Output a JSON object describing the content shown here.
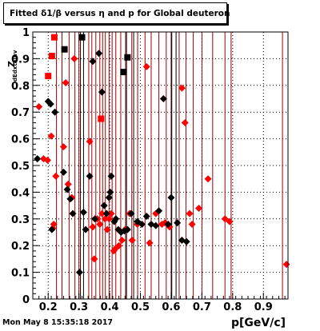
{
  "footer": {
    "timestamp": "Mon May  8 15:35:18 2017"
  },
  "chart_data": {
    "type": "scatter",
    "title": "Fitted δ1/β versus η and p for Global deuteron",
    "xlabel": "p[GeV/c]",
    "ylabel": "Z",
    "ylabel_subscript": "dEdxtainv",
    "xlim": [
      0.15,
      0.98
    ],
    "ylim": [
      0,
      1.0
    ],
    "x_ticks": [
      0.2,
      0.3,
      0.4,
      0.5,
      0.6,
      0.7,
      0.8,
      0.9
    ],
    "x_tick_labels": [
      "0.2",
      "0.3",
      "0.4",
      "0.5",
      "0.6",
      "0.7",
      "0.8",
      "0.9"
    ],
    "y_ticks": [
      0,
      0.1,
      0.2,
      0.3,
      0.4,
      0.5,
      0.6,
      0.7,
      0.8,
      0.9,
      1.0
    ],
    "y_tick_labels": [
      "0",
      "0.1",
      "0.2",
      "0.3",
      "0.4",
      "0.5",
      "0.6",
      "0.7",
      "0.8",
      "0.9",
      "1"
    ],
    "grid": true,
    "colors": {
      "red": "#ff0000",
      "dark_red": "#a00000",
      "black": "#000000"
    },
    "red_vertical_lines_x": [
      0.227,
      0.245,
      0.268,
      0.287,
      0.3,
      0.332,
      0.342,
      0.355,
      0.368,
      0.377,
      0.386,
      0.398,
      0.408,
      0.42,
      0.436,
      0.455,
      0.472,
      0.491,
      0.515,
      0.535,
      0.56,
      0.584,
      0.6,
      0.626,
      0.648,
      0.672,
      0.7,
      0.735,
      0.775,
      0.795,
      0.962
    ],
    "black_vertical_lines_x": [
      0.305,
      0.315,
      0.452,
      0.478,
      0.602,
      0.616
    ],
    "series": [
      {
        "marker": "diamond",
        "color": "red",
        "x": [
          0.17,
          0.185,
          0.198,
          0.21,
          0.215,
          0.218,
          0.225,
          0.25,
          0.257,
          0.265,
          0.277,
          0.285,
          0.335,
          0.345,
          0.35,
          0.36,
          0.368,
          0.375,
          0.385,
          0.392,
          0.398,
          0.405,
          0.413,
          0.42,
          0.43,
          0.44,
          0.45,
          0.465,
          0.473,
          0.49,
          0.52,
          0.53,
          0.55,
          0.57,
          0.58,
          0.595,
          0.635,
          0.645,
          0.66,
          0.668,
          0.69,
          0.72,
          0.775,
          0.79,
          0.975
        ],
        "y": [
          0.72,
          0.525,
          0.52,
          0.61,
          0.265,
          0.28,
          0.46,
          0.57,
          0.81,
          0.43,
          0.38,
          0.9,
          0.59,
          0.27,
          0.15,
          0.3,
          0.28,
          0.32,
          0.3,
          0.26,
          0.3,
          0.32,
          0.18,
          0.19,
          0.2,
          0.22,
          0.26,
          0.32,
          0.22,
          0.28,
          0.87,
          0.21,
          0.32,
          0.28,
          0.285,
          0.27,
          0.79,
          0.66,
          0.32,
          0.28,
          0.34,
          0.45,
          0.3,
          0.29,
          0.13
        ]
      },
      {
        "marker": "square",
        "color": "red",
        "x": [
          0.2,
          0.212,
          0.22,
          0.372
        ],
        "y": [
          0.835,
          0.91,
          0.98,
          0.675
        ]
      },
      {
        "marker": "diamond",
        "color": "black",
        "x": [
          0.165,
          0.2,
          0.208,
          0.212,
          0.222,
          0.25,
          0.262,
          0.272,
          0.28,
          0.302,
          0.315,
          0.322,
          0.335,
          0.345,
          0.352,
          0.365,
          0.375,
          0.382,
          0.39,
          0.398,
          0.402,
          0.405,
          0.415,
          0.42,
          0.428,
          0.437,
          0.448,
          0.458,
          0.47,
          0.49,
          0.505,
          0.52,
          0.535,
          0.55,
          0.56,
          0.575,
          0.59,
          0.6,
          0.62,
          0.635,
          0.65
        ],
        "y": [
          0.525,
          0.74,
          0.73,
          0.26,
          0.7,
          0.475,
          0.41,
          0.375,
          0.32,
          0.1,
          0.325,
          0.26,
          0.46,
          0.89,
          0.3,
          0.92,
          0.775,
          0.35,
          0.32,
          0.38,
          0.4,
          0.46,
          0.29,
          0.3,
          0.26,
          0.25,
          0.255,
          0.26,
          0.32,
          0.29,
          0.28,
          0.31,
          0.28,
          0.275,
          0.33,
          0.75,
          0.28,
          0.38,
          0.285,
          0.22,
          0.215
        ]
      },
      {
        "marker": "square",
        "color": "black",
        "x": [
          0.253,
          0.31,
          0.445,
          0.458
        ],
        "y": [
          0.935,
          0.98,
          0.85,
          0.905
        ]
      }
    ]
  }
}
